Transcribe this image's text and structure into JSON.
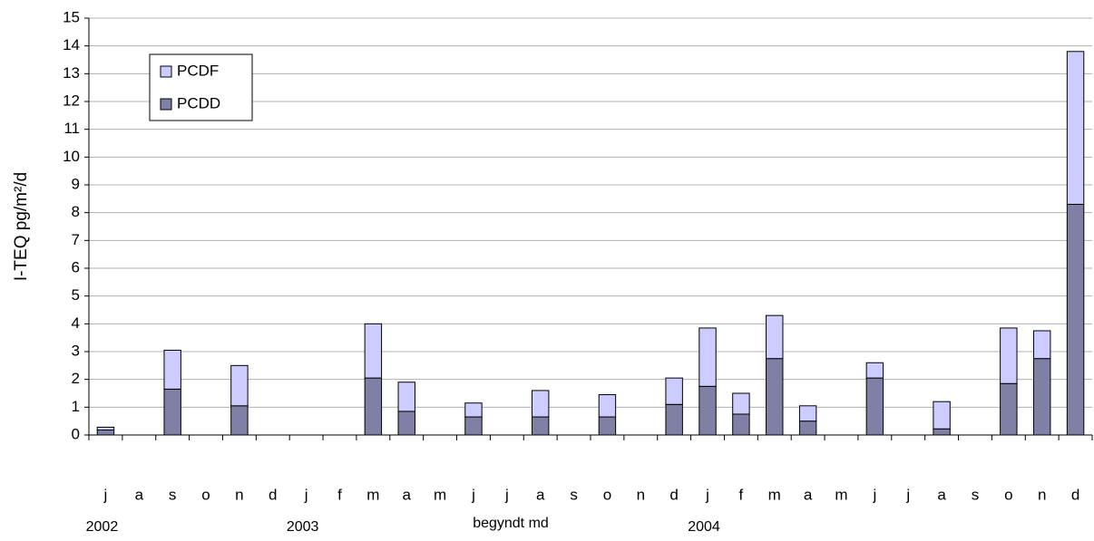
{
  "chart_data": {
    "type": "stacked_bar",
    "y_label": "I-TEQ pg/m²/d",
    "x_label": "begyndt md",
    "categories": [
      "j",
      "a",
      "s",
      "o",
      "n",
      "d",
      "j",
      "f",
      "m",
      "a",
      "m",
      "j",
      "j",
      "a",
      "s",
      "o",
      "n",
      "d",
      "j",
      "f",
      "m",
      "a",
      "m",
      "j",
      "j",
      "a",
      "s",
      "o",
      "n",
      "d"
    ],
    "year_labels": [
      "2002",
      null,
      null,
      null,
      null,
      null,
      "2003",
      null,
      null,
      null,
      null,
      null,
      null,
      null,
      null,
      null,
      null,
      null,
      "2004",
      null,
      null,
      null,
      null,
      null,
      null,
      null,
      null,
      null,
      null,
      null
    ],
    "series": [
      {
        "name": "PCDD",
        "color": "#8080a6",
        "values": [
          0.18,
          null,
          1.65,
          null,
          1.05,
          null,
          null,
          null,
          2.05,
          0.85,
          null,
          0.65,
          null,
          0.65,
          null,
          0.65,
          null,
          1.1,
          1.75,
          0.75,
          2.75,
          0.5,
          null,
          2.05,
          null,
          0.22,
          null,
          1.85,
          2.75,
          8.3
        ]
      },
      {
        "name": "PCDF",
        "color": "#ccccff",
        "values": [
          0.1,
          null,
          1.4,
          null,
          1.45,
          null,
          null,
          null,
          1.95,
          1.05,
          null,
          0.5,
          null,
          0.95,
          null,
          0.8,
          null,
          0.95,
          2.1,
          0.75,
          1.55,
          0.55,
          null,
          0.55,
          null,
          0.98,
          null,
          2.0,
          1.0,
          5.5
        ]
      }
    ],
    "ylim": [
      0,
      15
    ],
    "yticks": [
      0,
      1,
      2,
      3,
      4,
      5,
      6,
      7,
      8,
      9,
      10,
      11,
      12,
      13,
      14,
      15
    ],
    "grid": true,
    "legend": "upper-left"
  }
}
